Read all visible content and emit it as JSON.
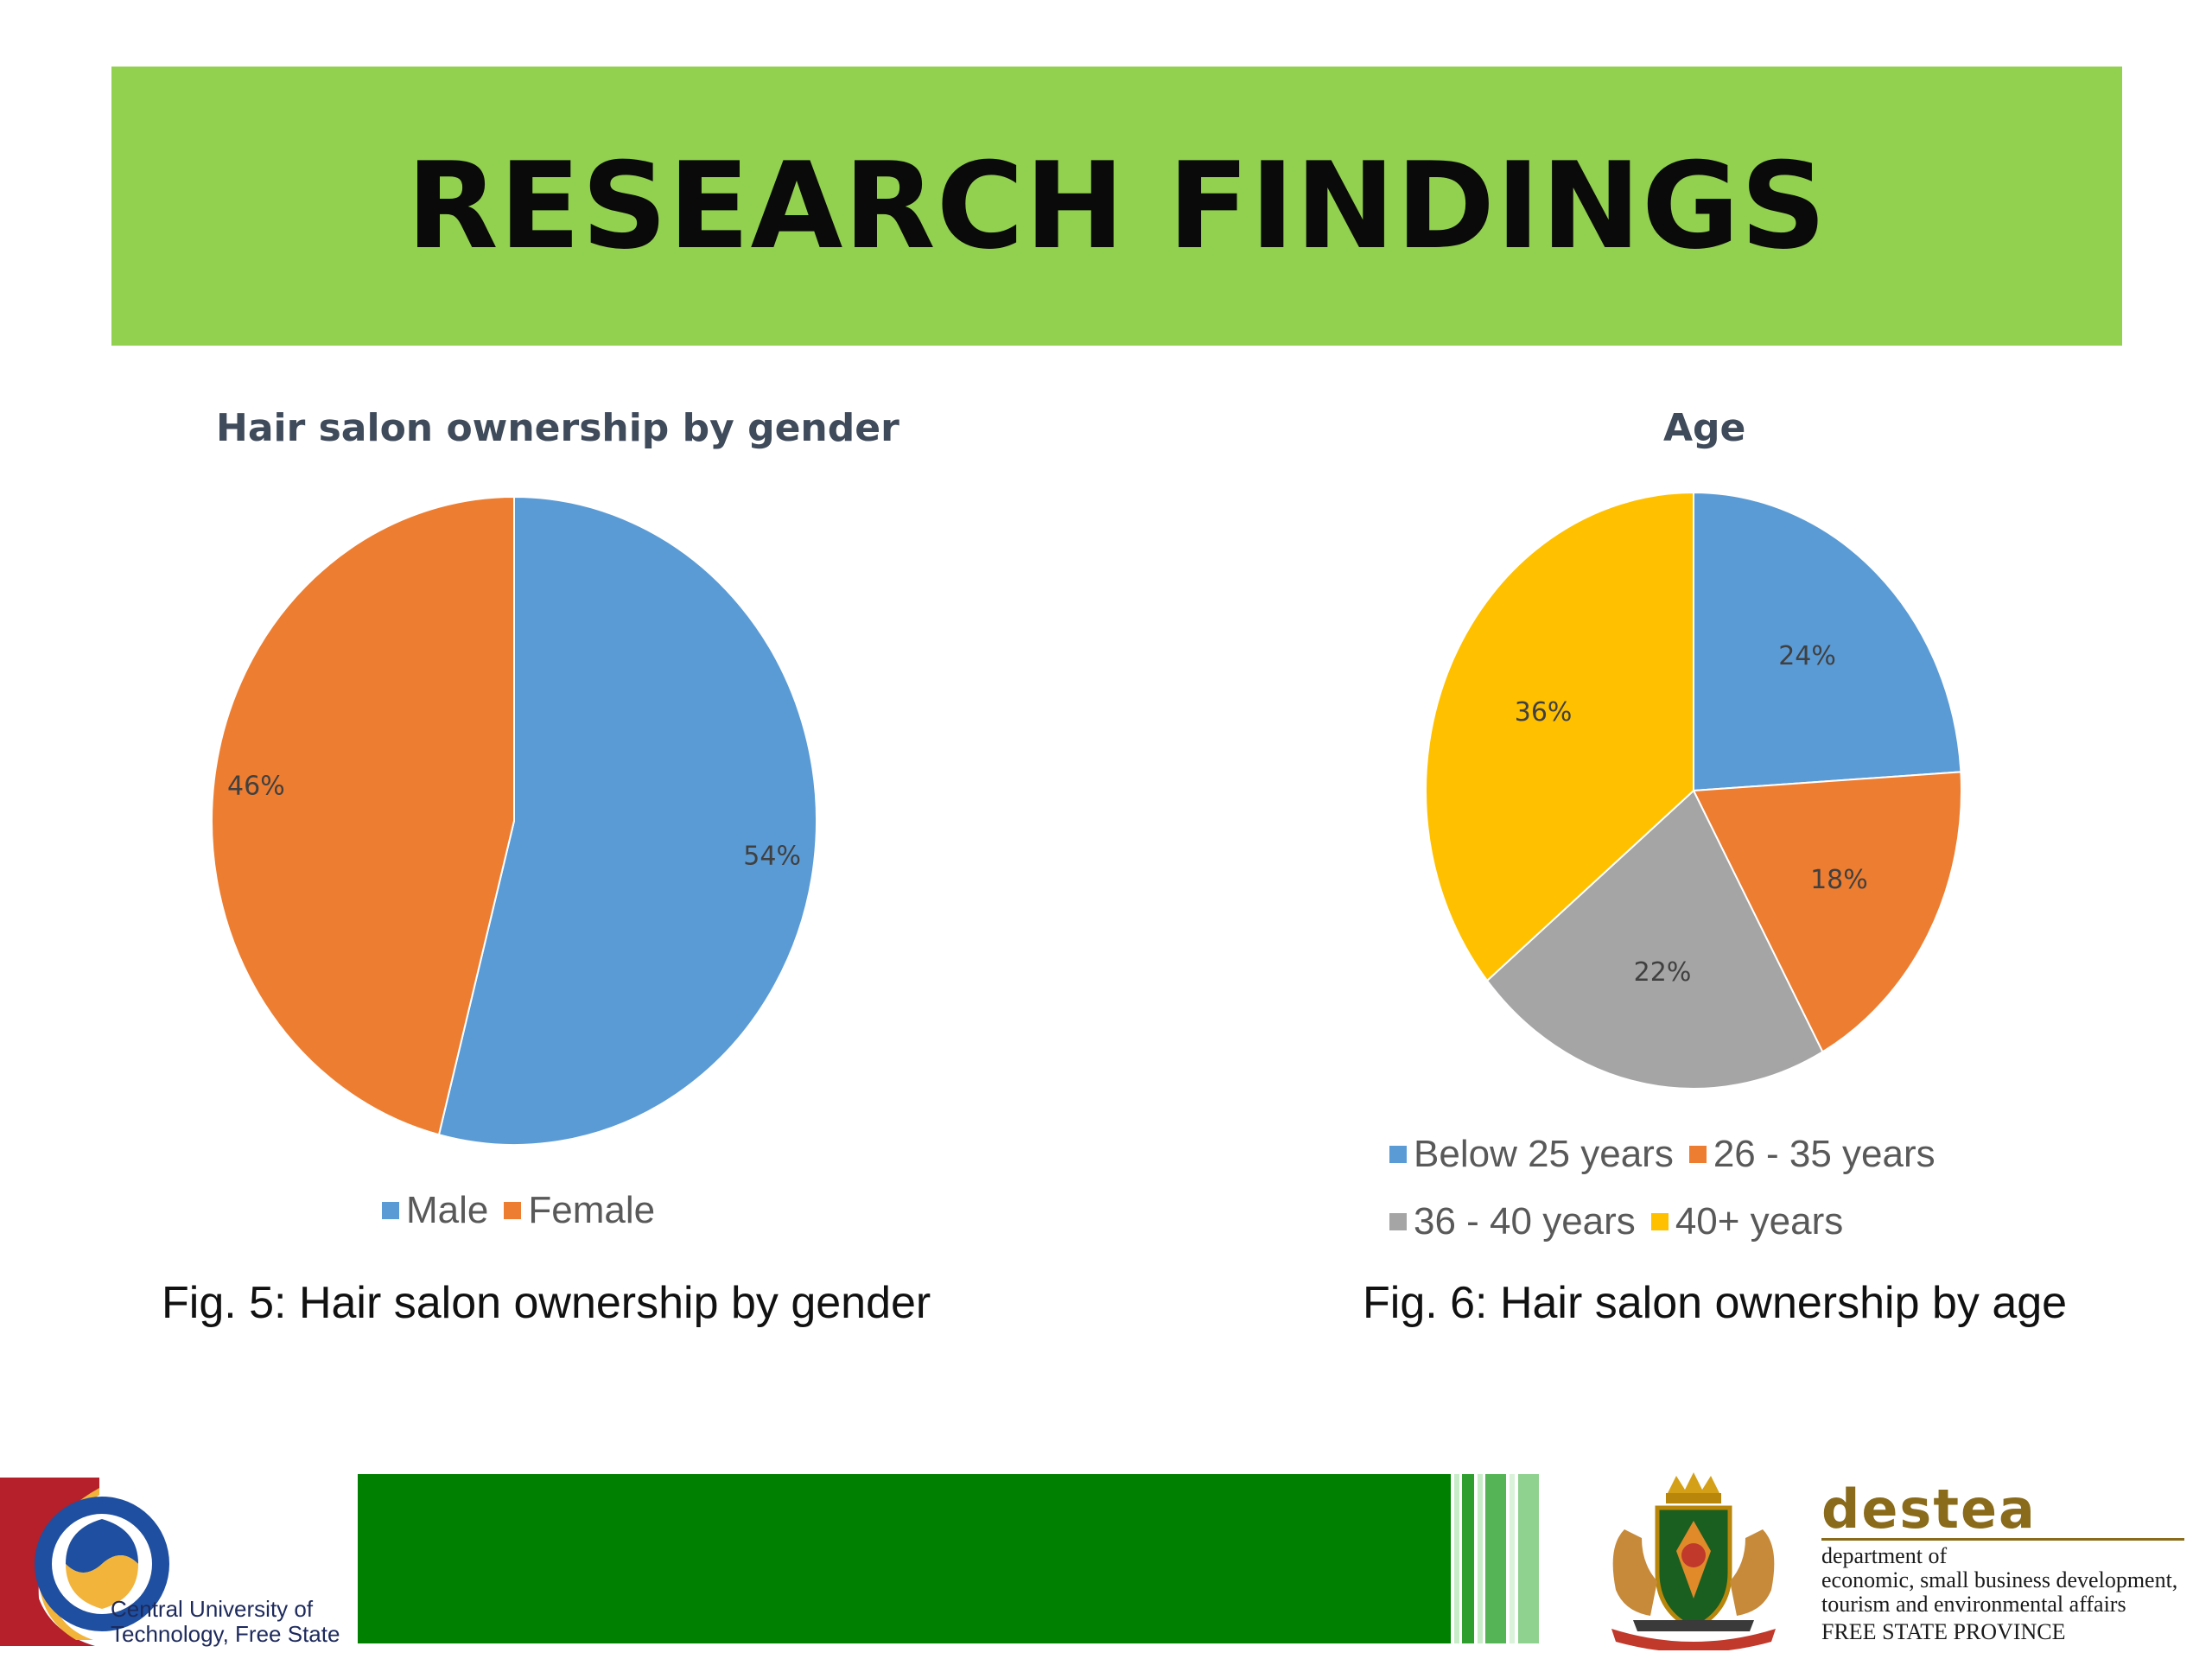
{
  "banner": {
    "title": "RESEARCH FINDINGS",
    "color": "#92d050"
  },
  "chart_data": [
    {
      "type": "pie",
      "title": "Hair salon ownership by gender",
      "categories": [
        "Male",
        "Female"
      ],
      "values": [
        54,
        46
      ],
      "labels": [
        "54%",
        "46%"
      ],
      "colors": [
        "#5b9bd5",
        "#ed7d31"
      ],
      "legend": "bottom",
      "caption": "Fig. 5: Hair salon ownership by gender"
    },
    {
      "type": "pie",
      "title": "Age",
      "categories": [
        "Below 25 years",
        "26 - 35 years",
        "36 - 40 years",
        "40+ years"
      ],
      "values": [
        24,
        18,
        22,
        36
      ],
      "labels": [
        "24%",
        "18%",
        "22%",
        "36%"
      ],
      "colors": [
        "#5b9bd5",
        "#ed7d31",
        "#a5a5a5",
        "#ffc000"
      ],
      "legend": "bottom",
      "caption": "Fig. 6: Hair salon ownership by age"
    }
  ],
  "footer": {
    "cut_name": [
      "Central University of",
      "Technology, Free State"
    ],
    "destea_word": "destea",
    "destea_lines": [
      "department of",
      "economic, small business development,",
      "tourism and environmental affairs",
      "FREE STATE PROVINCE"
    ],
    "colors": {
      "bar": "#008000",
      "stripe_light": "#8fd18f",
      "gold": "#8a6b1b"
    }
  }
}
